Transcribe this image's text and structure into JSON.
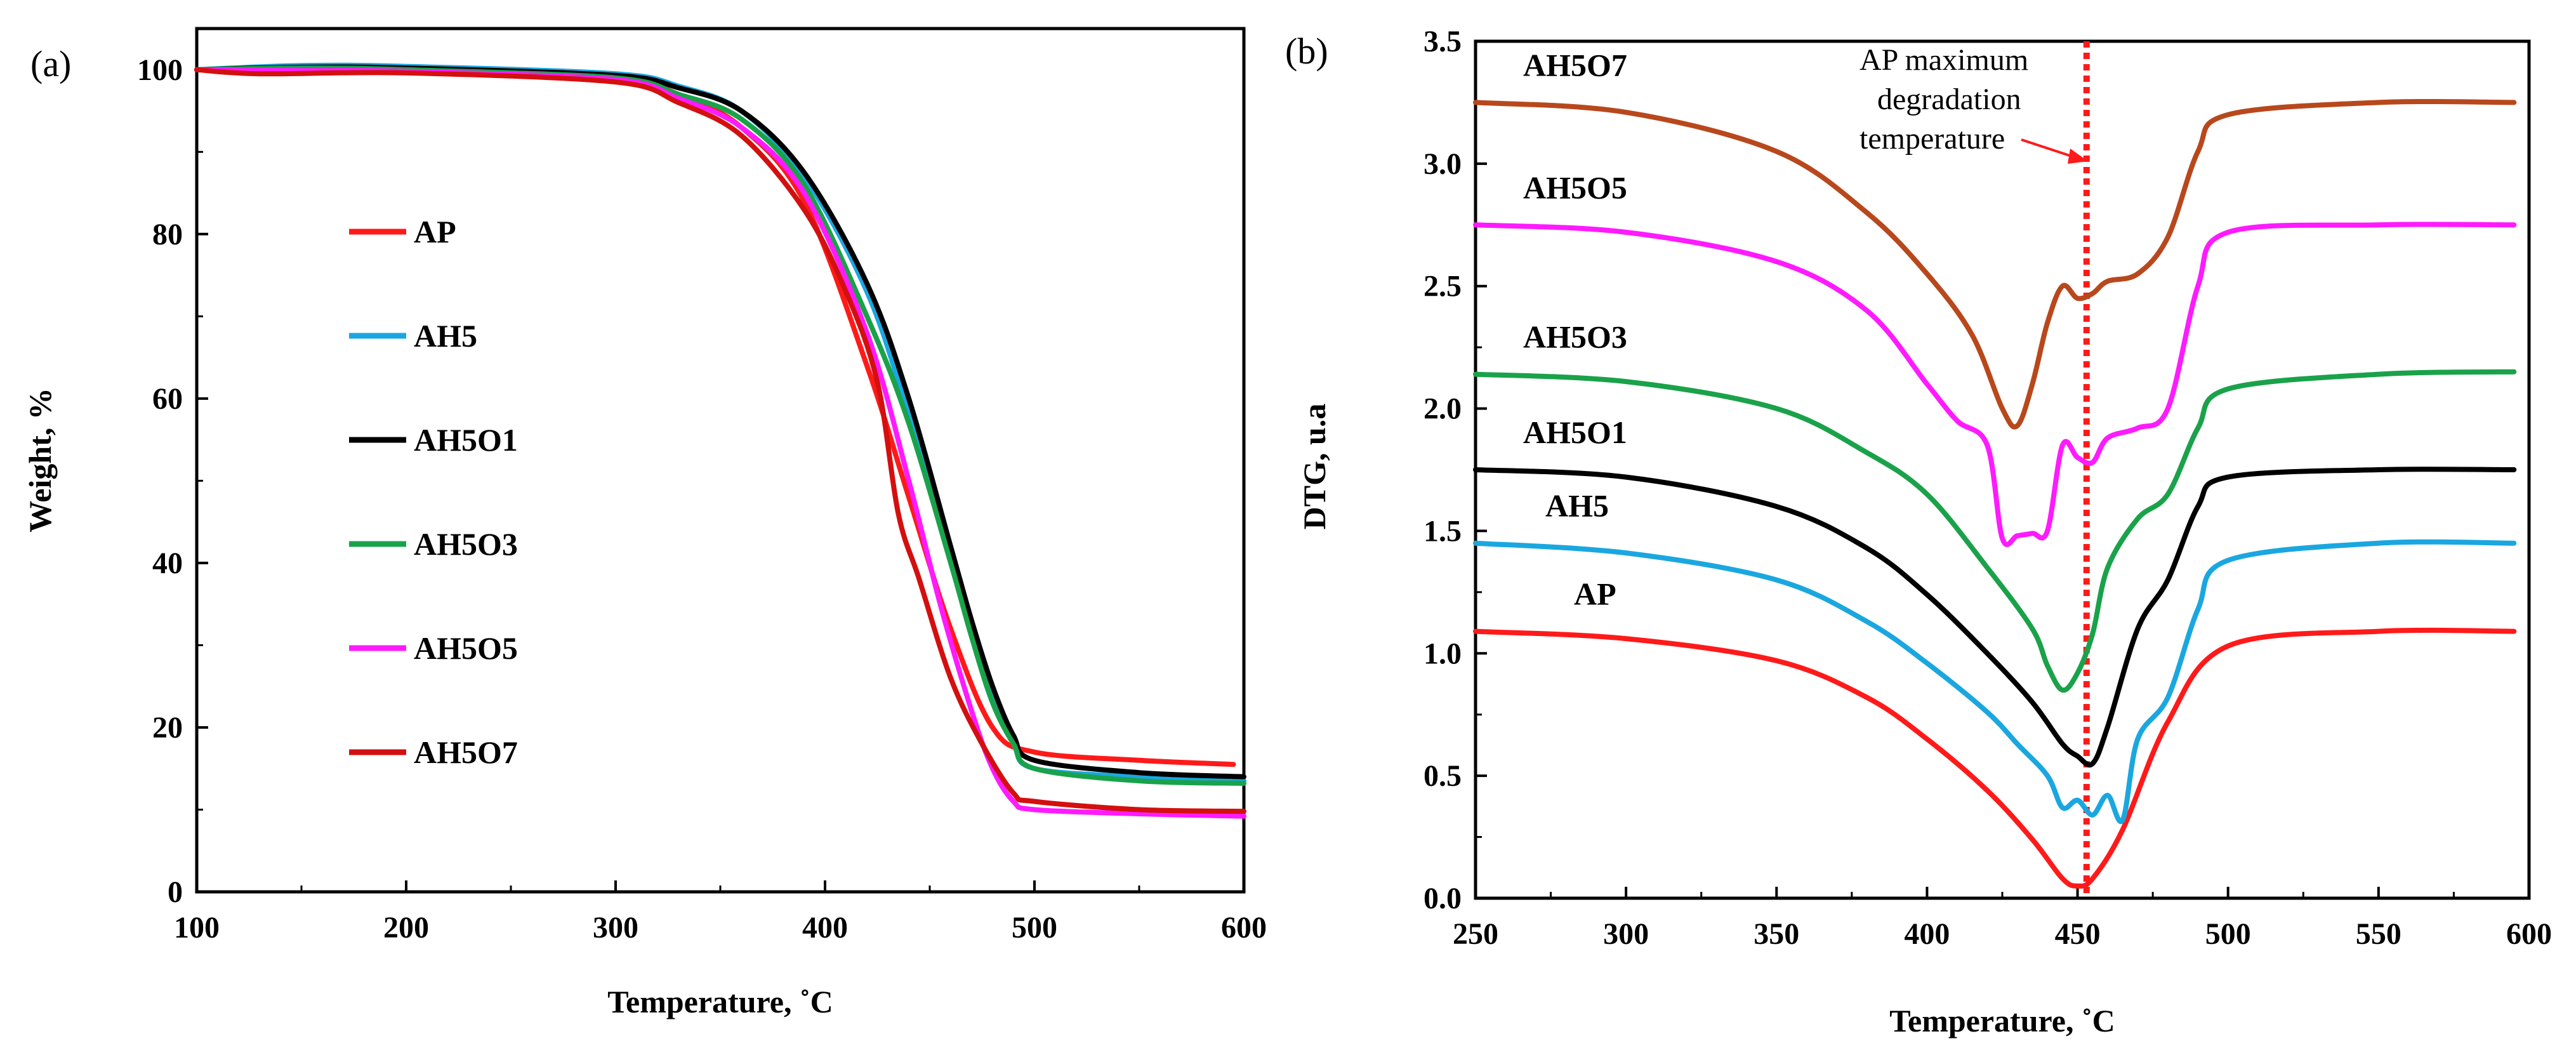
{
  "colors": {
    "AP": "#ff1a1a",
    "AH5": "#1aa7e0",
    "AH5O1": "#000000",
    "AH5O3": "#1aa24a",
    "AH5O5": "#ff1aff",
    "AH5O7": "#b8481c",
    "AH5O7_tga": "#d40f0f",
    "vline": "#ff1a1a"
  },
  "chart_data": [
    {
      "type": "line",
      "panel_label": "(a)",
      "xlabel": "Temperature, ˚C",
      "ylabel": "Weight, %",
      "xlim": [
        100,
        600
      ],
      "ylim": [
        0,
        105
      ],
      "xticks": [
        100,
        200,
        300,
        400,
        500,
        600
      ],
      "yticks": [
        0,
        20,
        40,
        60,
        80,
        100
      ],
      "grid": false,
      "legend_position": "left",
      "legend": [
        "AP",
        "AH5",
        "AH5O1",
        "AH5O3",
        "AH5O5",
        "AH5O7"
      ],
      "series": [
        {
          "name": "AP",
          "color_key": "AP",
          "x": [
            100,
            200,
            300,
            330,
            360,
            390,
            420,
            440,
            460,
            480,
            500,
            550,
            595
          ],
          "y": [
            100,
            99.9,
            99,
            97,
            93,
            84,
            64,
            48,
            32,
            20,
            17,
            16,
            15.5
          ]
        },
        {
          "name": "AH5",
          "color_key": "AH5",
          "x": [
            100,
            150,
            200,
            300,
            330,
            360,
            390,
            420,
            440,
            460,
            470,
            480,
            490,
            500,
            550,
            600
          ],
          "y": [
            100,
            100.5,
            100.4,
            99.5,
            98,
            95,
            87,
            73,
            58,
            41,
            32,
            24,
            18,
            15,
            14,
            13.5
          ]
        },
        {
          "name": "AH5O1",
          "color_key": "AH5O1",
          "x": [
            100,
            150,
            200,
            300,
            330,
            360,
            390,
            420,
            440,
            460,
            470,
            480,
            490,
            500,
            550,
            600
          ],
          "y": [
            100,
            100.3,
            100.2,
            99.3,
            97.8,
            95,
            87.5,
            74,
            60,
            42,
            33,
            25,
            19,
            16,
            14.5,
            14
          ]
        },
        {
          "name": "AH5O3",
          "color_key": "AH5O3",
          "x": [
            100,
            150,
            200,
            300,
            330,
            360,
            390,
            420,
            440,
            460,
            470,
            480,
            490,
            500,
            550,
            600
          ],
          "y": [
            100,
            100.2,
            100,
            99,
            97,
            94,
            86,
            70,
            57,
            40,
            31,
            23,
            18,
            15,
            13.5,
            13.2
          ]
        },
        {
          "name": "AH5O5",
          "color_key": "AH5O5",
          "x": [
            100,
            150,
            200,
            300,
            330,
            360,
            390,
            420,
            440,
            455,
            470,
            480,
            490,
            500,
            550,
            600
          ],
          "y": [
            100,
            99.9,
            99.8,
            98.8,
            96.5,
            93,
            85,
            68,
            50,
            35,
            22,
            15,
            11,
            10,
            9.5,
            9.2
          ]
        },
        {
          "name": "AH5O7",
          "color_key": "AH5O7_tga",
          "x": [
            100,
            130,
            200,
            300,
            330,
            360,
            390,
            410,
            425,
            435,
            445,
            460,
            475,
            490,
            500,
            550,
            600
          ],
          "y": [
            100,
            99.5,
            99.6,
            98.5,
            96,
            92,
            83,
            73,
            62,
            46,
            38,
            26,
            18,
            12,
            11,
            10,
            9.8
          ]
        }
      ]
    },
    {
      "type": "line",
      "panel_label": "(b)",
      "xlabel": "Temperature, ˚C",
      "ylabel": "DTG, u.a",
      "xlim": [
        250,
        600
      ],
      "ylim": [
        0.0,
        3.5
      ],
      "xticks": [
        250,
        300,
        350,
        400,
        450,
        500,
        550,
        600
      ],
      "yticks": [
        "0.0",
        "0.5",
        "1.0",
        "1.5",
        "2.0",
        "2.5",
        "3.0",
        "3.5"
      ],
      "grid": false,
      "annotation": {
        "lines": [
          "AP maximum",
          "degradation",
          "temperature"
        ],
        "x_value": 453
      },
      "series": [
        {
          "name": "AP",
          "color_key": "AP",
          "x": [
            250,
            300,
            350,
            380,
            400,
            420,
            435,
            445,
            450,
            455,
            465,
            480,
            500,
            550,
            595
          ],
          "y": [
            1.09,
            1.06,
            0.97,
            0.82,
            0.65,
            0.44,
            0.24,
            0.08,
            0.05,
            0.08,
            0.28,
            0.72,
            1.03,
            1.09,
            1.09
          ]
        },
        {
          "name": "AH5",
          "color_key": "AH5",
          "x": [
            250,
            300,
            350,
            380,
            400,
            420,
            430,
            440,
            445,
            450,
            455,
            460,
            465,
            470,
            480,
            490,
            500,
            550,
            595
          ],
          "y": [
            1.45,
            1.41,
            1.3,
            1.13,
            0.96,
            0.76,
            0.63,
            0.5,
            0.37,
            0.4,
            0.34,
            0.42,
            0.32,
            0.65,
            0.82,
            1.18,
            1.38,
            1.45,
            1.45
          ]
        },
        {
          "name": "AH5O1",
          "color_key": "AH5O1",
          "x": [
            250,
            300,
            350,
            380,
            400,
            420,
            435,
            445,
            450,
            455,
            460,
            470,
            480,
            490,
            500,
            550,
            595
          ],
          "y": [
            1.75,
            1.72,
            1.6,
            1.43,
            1.24,
            1.0,
            0.8,
            0.63,
            0.58,
            0.55,
            0.7,
            1.1,
            1.3,
            1.6,
            1.72,
            1.75,
            1.75
          ]
        },
        {
          "name": "AH5O3",
          "color_key": "AH5O3",
          "x": [
            250,
            300,
            350,
            380,
            400,
            420,
            435,
            440,
            445,
            450,
            455,
            460,
            470,
            480,
            490,
            500,
            550,
            595
          ],
          "y": [
            2.14,
            2.11,
            2.0,
            1.82,
            1.65,
            1.35,
            1.1,
            0.95,
            0.85,
            0.92,
            1.08,
            1.35,
            1.55,
            1.65,
            1.92,
            2.08,
            2.14,
            2.15
          ]
        },
        {
          "name": "AH5O5",
          "color_key": "AH5O5",
          "x": [
            250,
            300,
            350,
            380,
            400,
            410,
            420,
            425,
            430,
            435,
            440,
            445,
            450,
            455,
            460,
            470,
            480,
            490,
            500,
            550,
            595
          ],
          "y": [
            2.75,
            2.72,
            2.6,
            2.4,
            2.1,
            1.95,
            1.85,
            1.47,
            1.48,
            1.49,
            1.5,
            1.85,
            1.8,
            1.78,
            1.88,
            1.92,
            2.0,
            2.5,
            2.72,
            2.75,
            2.75
          ]
        },
        {
          "name": "AH5O7",
          "color_key": "AH5O7",
          "x": [
            250,
            300,
            350,
            380,
            400,
            415,
            425,
            430,
            435,
            440,
            445,
            450,
            455,
            460,
            470,
            480,
            490,
            500,
            550,
            595
          ],
          "y": [
            3.25,
            3.21,
            3.05,
            2.8,
            2.55,
            2.3,
            2.0,
            1.93,
            2.1,
            2.35,
            2.5,
            2.45,
            2.47,
            2.52,
            2.55,
            2.7,
            3.05,
            3.2,
            3.25,
            3.25
          ]
        }
      ]
    }
  ]
}
